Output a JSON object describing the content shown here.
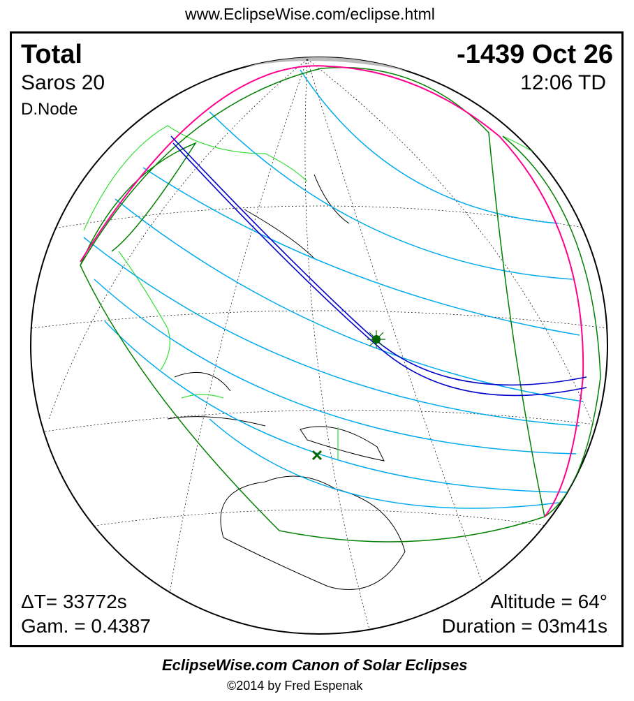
{
  "header": {
    "url": "www.EclipseWise.com/eclipse.html"
  },
  "eclipse": {
    "type": "Total",
    "date": "-1439 Oct 26",
    "saros": "Saros  20",
    "time": "12:06 TD",
    "node": "D.Node",
    "delta_t": "ΔT=  33772s",
    "gamma": "Gam. = 0.4387",
    "altitude": "Altitude = 64°",
    "duration": "Duration = 03m41s"
  },
  "footer": {
    "title": "EclipseWise.com Canon of Solar Eclipses",
    "copyright": "©2014 by Fred Espenak"
  },
  "colors": {
    "central_path": "#0000c8",
    "penumbra_lines": "#00aaee",
    "limits": "#008000",
    "rise_set": "#ff0090",
    "night": "#bbbbbb",
    "borders": "#33dd33"
  }
}
